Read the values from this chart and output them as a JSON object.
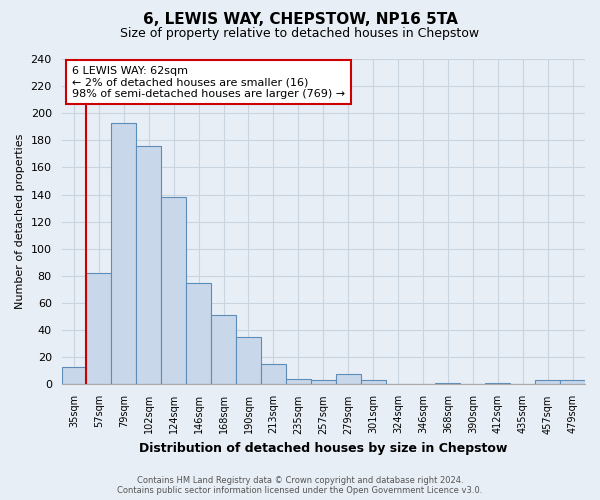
{
  "title": "6, LEWIS WAY, CHEPSTOW, NP16 5TA",
  "subtitle": "Size of property relative to detached houses in Chepstow",
  "xlabel": "Distribution of detached houses by size in Chepstow",
  "ylabel": "Number of detached properties",
  "bar_labels": [
    "35sqm",
    "57sqm",
    "79sqm",
    "102sqm",
    "124sqm",
    "146sqm",
    "168sqm",
    "190sqm",
    "213sqm",
    "235sqm",
    "257sqm",
    "279sqm",
    "301sqm",
    "324sqm",
    "346sqm",
    "368sqm",
    "390sqm",
    "412sqm",
    "435sqm",
    "457sqm",
    "479sqm"
  ],
  "bar_values": [
    13,
    82,
    193,
    176,
    138,
    75,
    51,
    35,
    15,
    4,
    3,
    8,
    3,
    0,
    0,
    1,
    0,
    1,
    0,
    3,
    3
  ],
  "bar_color": "#c8d8ea",
  "bar_edge_color": "#5b8db8",
  "vline_color": "#cc0000",
  "vline_x": 1.5,
  "annotation_title": "6 LEWIS WAY: 62sqm",
  "annotation_line1": "← 2% of detached houses are smaller (16)",
  "annotation_line2": "98% of semi-detached houses are larger (769) →",
  "annotation_box_color": "#ffffff",
  "annotation_box_edge": "#cc0000",
  "ylim": [
    0,
    240
  ],
  "yticks": [
    0,
    20,
    40,
    60,
    80,
    100,
    120,
    140,
    160,
    180,
    200,
    220,
    240
  ],
  "footer_line1": "Contains HM Land Registry data © Crown copyright and database right 2024.",
  "footer_line2": "Contains public sector information licensed under the Open Government Licence v3.0.",
  "background_color": "#e8eef5",
  "grid_color": "#c8d4e0",
  "title_fontsize": 11,
  "subtitle_fontsize": 9
}
